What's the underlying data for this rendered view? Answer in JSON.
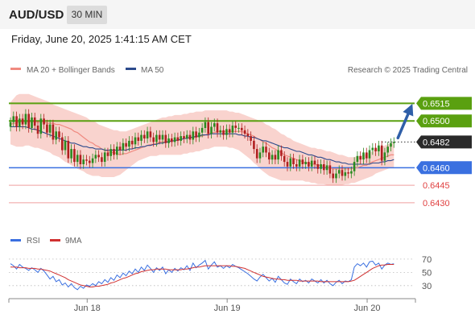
{
  "header": {
    "pair": "AUD/USD",
    "timeframe": "30 MIN",
    "datetime": "Friday, June 20, 2025 1:41:15 AM CET"
  },
  "legend": {
    "ma20": "MA 20 + Bollinger Bands",
    "ma50": "MA 50",
    "research": "Research © 2025 Trading Central",
    "rsi": "RSI",
    "ma9": "9MA"
  },
  "colors": {
    "ma20": "#f08a80",
    "ma50": "#2c4a8c",
    "bands_fill": "#f7c8c2",
    "green": "#5aa010",
    "blue": "#3a70e0",
    "red": "#e04040",
    "rsi": "#3a6fe0",
    "rsi_ma": "#d03030",
    "up": "#2a8a20",
    "down": "#b02020",
    "arrow": "#2f5fa8"
  },
  "chart_data": {
    "type": "candlestick",
    "instrument": "AUD/USD",
    "timeframe": "30 MIN",
    "price_range": [
      0.6421,
      0.6538
    ],
    "x_ticks": [
      {
        "index": 26,
        "label": "Jun 18"
      },
      {
        "index": 72,
        "label": "Jun 19"
      },
      {
        "index": 118,
        "label": "Jun 20"
      }
    ],
    "close": [
      0.6499,
      0.6504,
      0.6495,
      0.6502,
      0.6497,
      0.6506,
      0.6494,
      0.6503,
      0.6496,
      0.6489,
      0.6502,
      0.6497,
      0.649,
      0.6497,
      0.6484,
      0.6491,
      0.6486,
      0.6475,
      0.6483,
      0.6468,
      0.6476,
      0.6465,
      0.6471,
      0.6463,
      0.6467,
      0.6466,
      0.6464,
      0.6468,
      0.6471,
      0.6469,
      0.6465,
      0.6473,
      0.647,
      0.6476,
      0.6471,
      0.6478,
      0.6475,
      0.6481,
      0.6478,
      0.6483,
      0.648,
      0.6486,
      0.6483,
      0.6488,
      0.6485,
      0.6491,
      0.6486,
      0.6482,
      0.6488,
      0.6484,
      0.6488,
      0.6481,
      0.6485,
      0.6482,
      0.6486,
      0.6483,
      0.6487,
      0.6485,
      0.6488,
      0.6484,
      0.6491,
      0.6486,
      0.649,
      0.6494,
      0.6499,
      0.6489,
      0.6495,
      0.6498,
      0.649,
      0.6492,
      0.6488,
      0.6493,
      0.649,
      0.6496,
      0.6494,
      0.6494,
      0.6492,
      0.6489,
      0.6487,
      0.6483,
      0.6476,
      0.6468,
      0.6473,
      0.6478,
      0.6473,
      0.6467,
      0.6471,
      0.6467,
      0.6475,
      0.647,
      0.6465,
      0.6461,
      0.6468,
      0.6463,
      0.6461,
      0.6467,
      0.6463,
      0.6465,
      0.6461,
      0.6466,
      0.6463,
      0.6459,
      0.6463,
      0.6458,
      0.6462,
      0.6455,
      0.6451,
      0.6455,
      0.6458,
      0.6453,
      0.6456,
      0.6455,
      0.6457,
      0.6465,
      0.647,
      0.6467,
      0.6473,
      0.6468,
      0.6475,
      0.6477,
      0.6474,
      0.6479,
      0.6466,
      0.6473,
      0.6478,
      0.6481,
      0.6482
    ],
    "ma20": [
      0.6497,
      0.6498,
      0.6498,
      0.6499,
      0.6499,
      0.6499,
      0.6499,
      0.6499,
      0.6499,
      0.6499,
      0.6499,
      0.6499,
      0.6498,
      0.6498,
      0.6498,
      0.6497,
      0.6497,
      0.6496,
      0.6495,
      0.6494,
      0.6493,
      0.6491,
      0.649,
      0.6488,
      0.6486,
      0.6484,
      0.6482,
      0.6481,
      0.6479,
      0.6478,
      0.6476,
      0.6475,
      0.6474,
      0.6473,
      0.6473,
      0.6472,
      0.6471,
      0.6472,
      0.6472,
      0.6473,
      0.6474,
      0.6475,
      0.6476,
      0.6477,
      0.6478,
      0.6479,
      0.648,
      0.648,
      0.6481,
      0.6482,
      0.6482,
      0.6482,
      0.6483,
      0.6483,
      0.6483,
      0.6484,
      0.6484,
      0.6485,
      0.6485,
      0.6486,
      0.6486,
      0.6486,
      0.6487,
      0.6487,
      0.6488,
      0.6489,
      0.649,
      0.649,
      0.6491,
      0.6491,
      0.6491,
      0.6491,
      0.6491,
      0.6491,
      0.6491,
      0.6491,
      0.6491,
      0.649,
      0.6489,
      0.6488,
      0.6487,
      0.6485,
      0.6484,
      0.6482,
      0.6481,
      0.6479,
      0.6477,
      0.6476,
      0.6474,
      0.6473,
      0.6471,
      0.647,
      0.6469,
      0.6468,
      0.6467,
      0.6466,
      0.6465,
      0.6464,
      0.6464,
      0.6463,
      0.6463,
      0.6462,
      0.6462,
      0.6461,
      0.646,
      0.646,
      0.6459,
      0.6459,
      0.6459,
      0.6459,
      0.6459,
      0.6459,
      0.6459,
      0.646,
      0.646,
      0.6461,
      0.6462,
      0.6462,
      0.6464,
      0.6465,
      0.6466,
      0.6467,
      0.6468,
      0.6469,
      0.647,
      0.6471,
      0.6471
    ],
    "bb_upper": [
      0.6516,
      0.6519,
      0.6522,
      0.6523,
      0.6523,
      0.6523,
      0.6523,
      0.6522,
      0.6521,
      0.652,
      0.6519,
      0.6518,
      0.6517,
      0.6516,
      0.6514,
      0.6513,
      0.6512,
      0.6511,
      0.651,
      0.6509,
      0.6508,
      0.6507,
      0.6506,
      0.6505,
      0.6504,
      0.6503,
      0.6501,
      0.65,
      0.6499,
      0.6497,
      0.6496,
      0.6495,
      0.6494,
      0.6493,
      0.6492,
      0.6492,
      0.6491,
      0.6491,
      0.6491,
      0.6492,
      0.6493,
      0.6494,
      0.6495,
      0.6496,
      0.6497,
      0.6498,
      0.6499,
      0.65,
      0.6501,
      0.6502,
      0.6503,
      0.6503,
      0.6504,
      0.6504,
      0.6505,
      0.6505,
      0.6505,
      0.6506,
      0.6506,
      0.6507,
      0.6507,
      0.6508,
      0.6508,
      0.6508,
      0.6509,
      0.6509,
      0.6509,
      0.6509,
      0.6509,
      0.6509,
      0.6509,
      0.6509,
      0.6508,
      0.6508,
      0.6507,
      0.6507,
      0.6506,
      0.6505,
      0.6504,
      0.6503,
      0.6502,
      0.6501,
      0.65,
      0.6499,
      0.6497,
      0.6496,
      0.6494,
      0.6493,
      0.6491,
      0.6489,
      0.6488,
      0.6486,
      0.6485,
      0.6483,
      0.6482,
      0.6481,
      0.648,
      0.6479,
      0.6478,
      0.6477,
      0.6477,
      0.6476,
      0.6476,
      0.6475,
      0.6474,
      0.6474,
      0.6473,
      0.6472,
      0.6471,
      0.6471,
      0.647,
      0.6469,
      0.6469,
      0.6469,
      0.647,
      0.647,
      0.6471,
      0.6472,
      0.6473,
      0.6474,
      0.6476,
      0.6477,
      0.6478,
      0.6479,
      0.648,
      0.6481,
      0.6481
    ],
    "bb_lower": [
      0.648,
      0.6479,
      0.6478,
      0.6478,
      0.6478,
      0.6479,
      0.6479,
      0.6478,
      0.6477,
      0.6477,
      0.6476,
      0.6475,
      0.6474,
      0.6473,
      0.6471,
      0.647,
      0.6469,
      0.6467,
      0.6465,
      0.6464,
      0.6462,
      0.6461,
      0.6459,
      0.6458,
      0.6457,
      0.6455,
      0.6454,
      0.6453,
      0.6453,
      0.6453,
      0.6452,
      0.6452,
      0.6452,
      0.6452,
      0.6452,
      0.6453,
      0.6454,
      0.6456,
      0.6458,
      0.646,
      0.6462,
      0.6464,
      0.6466,
      0.6467,
      0.6468,
      0.6469,
      0.647,
      0.647,
      0.647,
      0.6471,
      0.6471,
      0.6471,
      0.6471,
      0.6471,
      0.6471,
      0.6471,
      0.6471,
      0.6472,
      0.6472,
      0.6473,
      0.6473,
      0.6474,
      0.6474,
      0.6475,
      0.6476,
      0.6476,
      0.6477,
      0.6478,
      0.6478,
      0.6478,
      0.6478,
      0.6478,
      0.6477,
      0.6477,
      0.6476,
      0.6475,
      0.6473,
      0.6471,
      0.6469,
      0.6467,
      0.6464,
      0.6462,
      0.6459,
      0.6457,
      0.6455,
      0.6453,
      0.6452,
      0.6451,
      0.645,
      0.6449,
      0.6449,
      0.6449,
      0.6449,
      0.6449,
      0.6449,
      0.6449,
      0.6449,
      0.6448,
      0.6448,
      0.6447,
      0.6447,
      0.6446,
      0.6446,
      0.6446,
      0.6445,
      0.6445,
      0.6445,
      0.6445,
      0.6445,
      0.6445,
      0.6446,
      0.6446,
      0.6447,
      0.6447,
      0.6448,
      0.6449,
      0.645,
      0.6451,
      0.6452,
      0.6453,
      0.6455,
      0.6456,
      0.6457,
      0.6458,
      0.6459,
      0.646,
      0.646
    ],
    "ma50": [
      0.6495,
      0.6495,
      0.6495,
      0.6495,
      0.6495,
      0.6495,
      0.6494,
      0.6493,
      0.6493,
      0.6492,
      0.6491,
      0.649,
      0.6489,
      0.6488,
      0.6487,
      0.6486,
      0.6485,
      0.6484,
      0.6483,
      0.6482,
      0.6481,
      0.6481,
      0.648,
      0.6479,
      0.6478,
      0.6478,
      0.6477,
      0.6477,
      0.6476,
      0.6476,
      0.6476,
      0.6475,
      0.6475,
      0.6475,
      0.6475,
      0.6475,
      0.6475,
      0.6475,
      0.6475,
      0.6476,
      0.6476,
      0.6477,
      0.6477,
      0.6478,
      0.6478,
      0.6479,
      0.6479,
      0.648,
      0.648,
      0.6481,
      0.6481,
      0.6482,
      0.6482,
      0.6483,
      0.6483,
      0.6484,
      0.6484,
      0.6485,
      0.6485,
      0.6486,
      0.6486,
      0.6487,
      0.6487,
      0.6488,
      0.6488,
      0.6488,
      0.6489,
      0.6489,
      0.6489,
      0.6489,
      0.6489,
      0.6489,
      0.6489,
      0.6489,
      0.6489,
      0.6488,
      0.6488,
      0.6487,
      0.6487,
      0.6486,
      0.6486,
      0.6485,
      0.6484,
      0.6483,
      0.6483,
      0.6482,
      0.6481,
      0.648,
      0.6479,
      0.6478,
      0.6477,
      0.6477,
      0.6476,
      0.6475,
      0.6474,
      0.6474,
      0.6473,
      0.6472,
      0.6471,
      0.6471,
      0.647,
      0.6469,
      0.6469,
      0.6468,
      0.6467,
      0.6467,
      0.6466,
      0.6465,
      0.6465,
      0.6464,
      0.6464,
      0.6463,
      0.6463,
      0.6463,
      0.6463,
      0.6463,
      0.6463,
      0.6463,
      0.6463,
      0.6464,
      0.6464,
      0.6464,
      0.6465,
      0.6465,
      0.6466,
      0.6466,
      0.6467
    ],
    "levels": [
      {
        "value": 0.6515,
        "label": "0.6515",
        "kind": "resistance"
      },
      {
        "value": 0.65,
        "label": "0.6500",
        "kind": "resistance"
      },
      {
        "value": 0.6482,
        "label": "0.6482",
        "kind": "last"
      },
      {
        "value": 0.646,
        "label": "0.6460",
        "kind": "pivot"
      },
      {
        "value": 0.6445,
        "label": "0.6445",
        "kind": "support"
      },
      {
        "value": 0.643,
        "label": "0.6430",
        "kind": "support"
      }
    ],
    "rsi": {
      "range": [
        14,
        82
      ],
      "ticks": [
        30,
        50,
        70
      ],
      "rsi": [
        63,
        60,
        55,
        62,
        58,
        56,
        53,
        57,
        54,
        50,
        56,
        52,
        46,
        40,
        44,
        36,
        39,
        31,
        34,
        28,
        33,
        27,
        24,
        29,
        26,
        31,
        29,
        33,
        30,
        36,
        33,
        39,
        35,
        42,
        38,
        46,
        42,
        49,
        45,
        52,
        48,
        55,
        50,
        58,
        53,
        61,
        56,
        50,
        57,
        53,
        58,
        48,
        54,
        50,
        56,
        52,
        57,
        54,
        60,
        53,
        64,
        57,
        61,
        64,
        68,
        55,
        61,
        66,
        58,
        60,
        56,
        60,
        57,
        62,
        59,
        57,
        54,
        51,
        48,
        44,
        40,
        37,
        43,
        47,
        42,
        37,
        41,
        35,
        44,
        39,
        34,
        32,
        40,
        36,
        33,
        40,
        36,
        38,
        34,
        40,
        37,
        34,
        39,
        34,
        38,
        33,
        30,
        35,
        38,
        33,
        37,
        36,
        39,
        58,
        63,
        60,
        64,
        58,
        66,
        67,
        61,
        64,
        55,
        61,
        64,
        62,
        63
      ],
      "ma9": [
        58,
        58,
        58,
        57,
        57,
        57,
        56,
        56,
        56,
        55,
        55,
        54,
        53,
        52,
        50,
        48,
        46,
        44,
        42,
        39,
        37,
        35,
        33,
        31,
        30,
        29,
        28,
        28,
        29,
        29,
        30,
        31,
        32,
        34,
        35,
        37,
        39,
        41,
        42,
        44,
        46,
        48,
        49,
        51,
        52,
        53,
        54,
        54,
        55,
        55,
        55,
        55,
        54,
        54,
        54,
        54,
        54,
        55,
        55,
        56,
        57,
        58,
        58,
        59,
        60,
        60,
        60,
        60,
        60,
        60,
        60,
        60,
        60,
        59,
        59,
        58,
        57,
        56,
        54,
        52,
        50,
        48,
        46,
        44,
        43,
        42,
        41,
        40,
        40,
        39,
        39,
        38,
        38,
        38,
        38,
        37,
        37,
        37,
        37,
        37,
        37,
        37,
        36,
        36,
        36,
        36,
        36,
        36,
        36,
        36,
        36,
        36,
        37,
        38,
        41,
        44,
        47,
        50,
        53,
        56,
        58,
        60,
        61,
        61,
        62,
        62,
        62
      ]
    }
  }
}
